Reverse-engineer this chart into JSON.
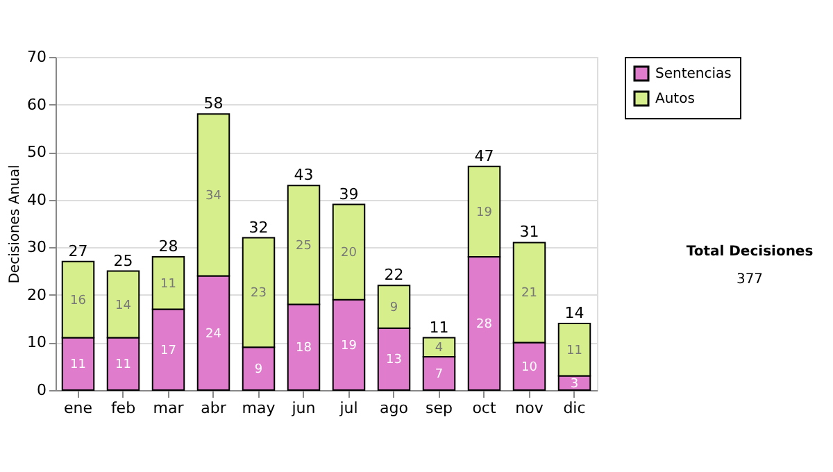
{
  "chart_data": {
    "type": "bar",
    "stacked": true,
    "ylabel": "Decisiones Anual",
    "categories": [
      "ene",
      "feb",
      "mar",
      "abr",
      "may",
      "jun",
      "jul",
      "ago",
      "sep",
      "oct",
      "nov",
      "dic"
    ],
    "series": [
      {
        "name": "Sentencias",
        "color": "#e07ccc",
        "values": [
          11,
          11,
          17,
          24,
          9,
          18,
          19,
          13,
          7,
          28,
          10,
          3
        ]
      },
      {
        "name": "Autos",
        "color": "#d6ef8c",
        "values": [
          16,
          14,
          11,
          34,
          23,
          25,
          20,
          9,
          4,
          19,
          21,
          11
        ]
      }
    ],
    "totals": [
      "27",
      "25",
      "28",
      "58",
      "32",
      "43",
      "39",
      "22",
      "11",
      "47",
      "31",
      "14"
    ],
    "data_labels": true,
    "ylim": [
      0,
      70
    ],
    "yticks": [
      0,
      10,
      20,
      30,
      40,
      50,
      60,
      70
    ],
    "grid": "y",
    "legend": "right",
    "annotations": [
      "Total Decisiones",
      "377"
    ]
  }
}
